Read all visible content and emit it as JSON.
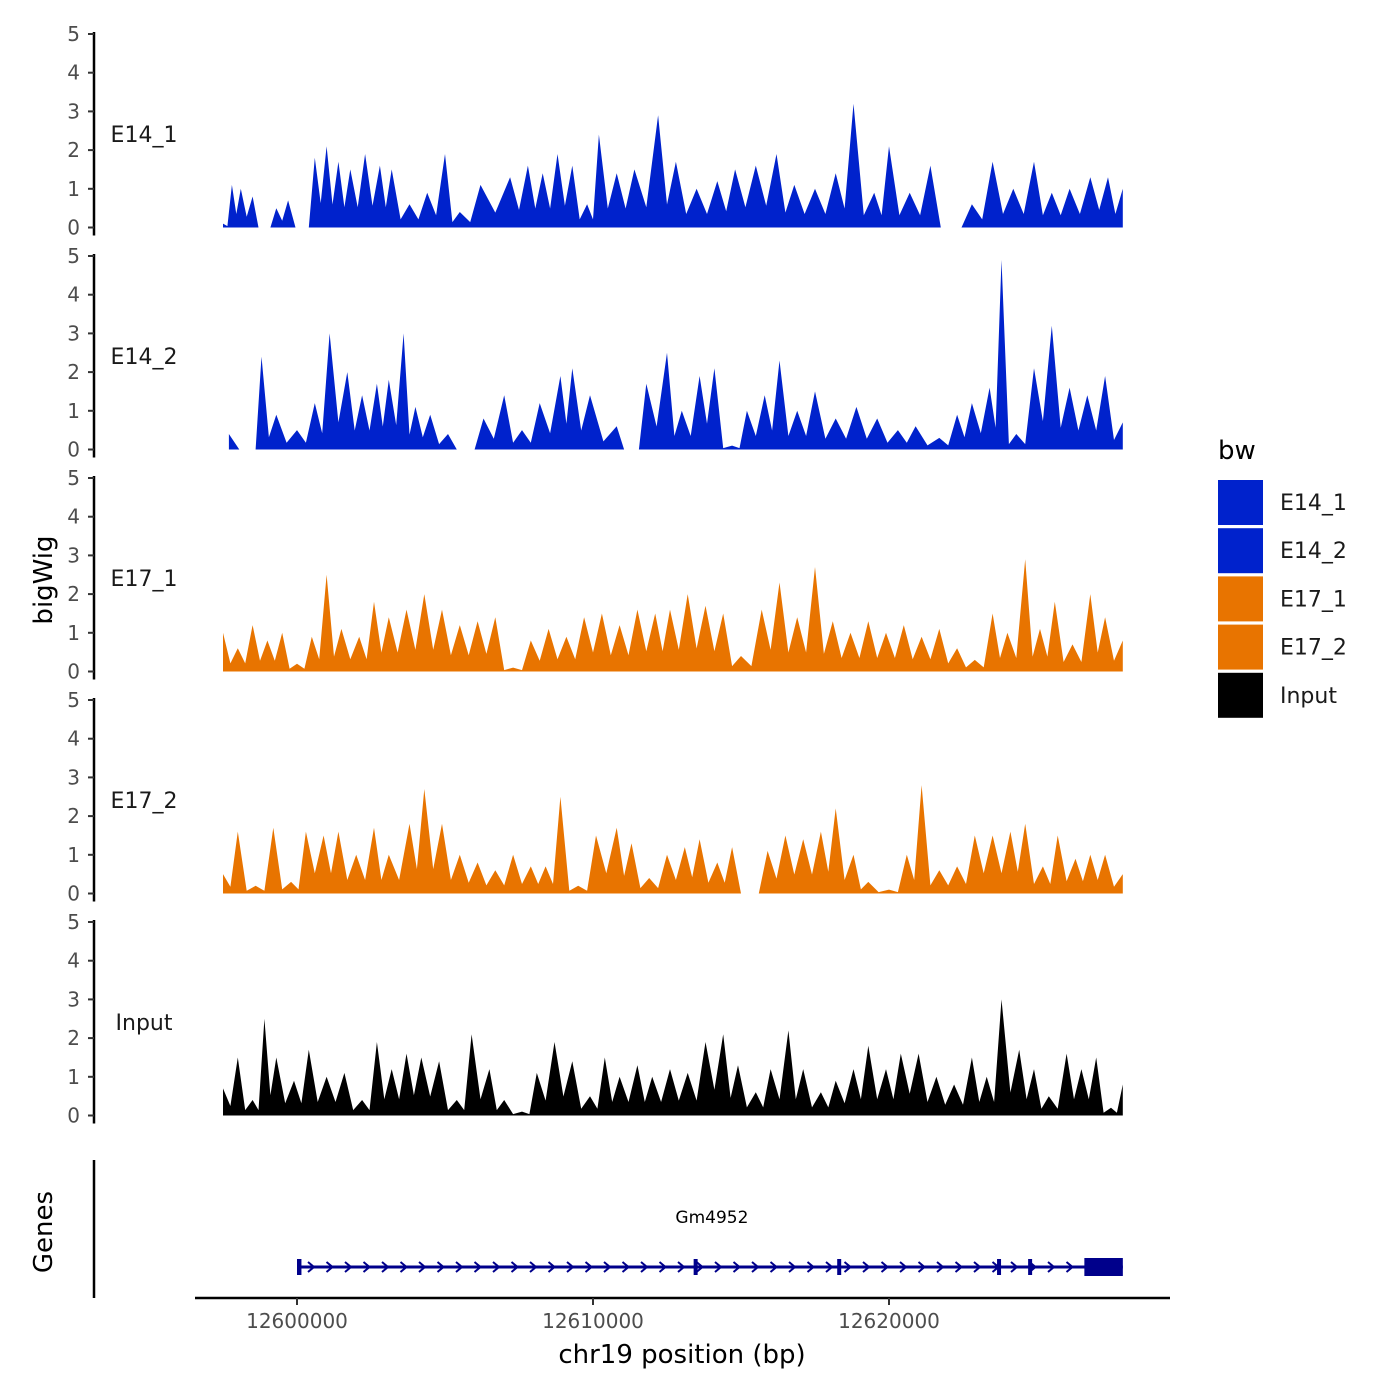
{
  "chart_data": {
    "type": "area",
    "region": {
      "chrom": "chr19",
      "start": 12597500,
      "end": 12627900
    },
    "ylabel": "bigWig",
    "genes_label": "Genes",
    "xlabel": "chr19 position (bp)",
    "x_ticks": [
      12600000,
      12610000,
      12620000
    ],
    "x_tick_labels": [
      "12600000",
      "12610000",
      "12620000"
    ],
    "y_ticks": [
      0,
      1,
      2,
      3,
      4,
      5
    ],
    "y_tick_labels": [
      "0",
      "1",
      "2",
      "3",
      "4",
      "5"
    ],
    "ylim": [
      0,
      5
    ],
    "legend": {
      "title": "bw",
      "entries": [
        {
          "label": "E14_1",
          "color": "#0022CC"
        },
        {
          "label": "E14_2",
          "color": "#0022CC"
        },
        {
          "label": "E17_1",
          "color": "#E87400"
        },
        {
          "label": "E17_2",
          "color": "#E87400"
        },
        {
          "label": "Input",
          "color": "#000000"
        }
      ]
    },
    "series": [
      {
        "name": "E14_1",
        "color": "#0022CC",
        "peaks": [
          [
            12597500,
            0.1
          ],
          [
            12597800,
            1.1
          ],
          [
            12598100,
            1.0
          ],
          [
            12598500,
            0.8
          ],
          [
            12598900,
            0.0
          ],
          [
            12599300,
            0.5
          ],
          [
            12599700,
            0.7
          ],
          [
            12600200,
            0.0
          ],
          [
            12600600,
            1.8
          ],
          [
            12601000,
            2.1
          ],
          [
            12601400,
            1.7
          ],
          [
            12601800,
            1.5
          ],
          [
            12602300,
            1.9
          ],
          [
            12602800,
            1.6
          ],
          [
            12603200,
            1.5
          ],
          [
            12603800,
            0.6
          ],
          [
            12604400,
            0.9
          ],
          [
            12605000,
            1.9
          ],
          [
            12605500,
            0.4
          ],
          [
            12606200,
            1.1
          ],
          [
            12607200,
            1.3
          ],
          [
            12607800,
            1.6
          ],
          [
            12608300,
            1.4
          ],
          [
            12608800,
            1.9
          ],
          [
            12609300,
            1.6
          ],
          [
            12609800,
            0.6
          ],
          [
            12610200,
            2.4
          ],
          [
            12610800,
            1.4
          ],
          [
            12611400,
            1.5
          ],
          [
            12612200,
            2.9
          ],
          [
            12612800,
            1.7
          ],
          [
            12613500,
            1.0
          ],
          [
            12614200,
            1.2
          ],
          [
            12614800,
            1.5
          ],
          [
            12615500,
            1.6
          ],
          [
            12616200,
            1.9
          ],
          [
            12616800,
            1.1
          ],
          [
            12617500,
            1.0
          ],
          [
            12618200,
            1.4
          ],
          [
            12618800,
            3.2
          ],
          [
            12619500,
            0.9
          ],
          [
            12620000,
            2.1
          ],
          [
            12620700,
            0.9
          ],
          [
            12621400,
            1.6
          ],
          [
            12622100,
            0.0
          ],
          [
            12622800,
            0.6
          ],
          [
            12623500,
            1.7
          ],
          [
            12624200,
            1.0
          ],
          [
            12624900,
            1.7
          ],
          [
            12625500,
            0.9
          ],
          [
            12626100,
            1.0
          ],
          [
            12626800,
            1.3
          ],
          [
            12627400,
            1.3
          ],
          [
            12627900,
            1.0
          ]
        ]
      },
      {
        "name": "E14_2",
        "color": "#0022CC",
        "peaks": [
          [
            12597700,
            0.4
          ],
          [
            12598400,
            0.0
          ],
          [
            12598800,
            2.4
          ],
          [
            12599300,
            0.9
          ],
          [
            12600000,
            0.5
          ],
          [
            12600600,
            1.2
          ],
          [
            12601100,
            3.0
          ],
          [
            12601700,
            2.0
          ],
          [
            12602200,
            1.4
          ],
          [
            12602700,
            1.7
          ],
          [
            12603100,
            1.8
          ],
          [
            12603600,
            3.0
          ],
          [
            12604000,
            1.1
          ],
          [
            12604500,
            0.9
          ],
          [
            12605100,
            0.4
          ],
          [
            12605700,
            0.0
          ],
          [
            12606300,
            0.8
          ],
          [
            12607000,
            1.4
          ],
          [
            12607600,
            0.5
          ],
          [
            12608200,
            1.2
          ],
          [
            12608900,
            1.9
          ],
          [
            12609300,
            2.1
          ],
          [
            12609900,
            1.4
          ],
          [
            12610800,
            0.6
          ],
          [
            12611300,
            0.0
          ],
          [
            12611800,
            1.7
          ],
          [
            12612500,
            2.5
          ],
          [
            12613000,
            1.0
          ],
          [
            12613600,
            1.9
          ],
          [
            12614100,
            2.1
          ],
          [
            12614700,
            0.1
          ],
          [
            12615200,
            1.0
          ],
          [
            12615800,
            1.4
          ],
          [
            12616300,
            2.3
          ],
          [
            12616900,
            1.0
          ],
          [
            12617500,
            1.5
          ],
          [
            12618200,
            0.8
          ],
          [
            12618900,
            1.1
          ],
          [
            12619600,
            0.8
          ],
          [
            12620300,
            0.5
          ],
          [
            12620900,
            0.6
          ],
          [
            12621700,
            0.3
          ],
          [
            12622300,
            0.9
          ],
          [
            12622800,
            1.2
          ],
          [
            12623400,
            1.6
          ],
          [
            12623800,
            4.9
          ],
          [
            12624300,
            0.4
          ],
          [
            12624900,
            2.1
          ],
          [
            12625500,
            3.2
          ],
          [
            12626100,
            1.6
          ],
          [
            12626700,
            1.4
          ],
          [
            12627300,
            1.9
          ],
          [
            12627900,
            0.7
          ]
        ]
      },
      {
        "name": "E17_1",
        "color": "#E87400",
        "peaks": [
          [
            12597500,
            1.0
          ],
          [
            12598000,
            0.6
          ],
          [
            12598500,
            1.2
          ],
          [
            12599000,
            0.8
          ],
          [
            12599500,
            1.0
          ],
          [
            12600000,
            0.2
          ],
          [
            12600500,
            0.9
          ],
          [
            12601000,
            2.5
          ],
          [
            12601500,
            1.1
          ],
          [
            12602100,
            0.9
          ],
          [
            12602600,
            1.8
          ],
          [
            12603100,
            1.4
          ],
          [
            12603700,
            1.6
          ],
          [
            12604300,
            2.0
          ],
          [
            12604900,
            1.6
          ],
          [
            12605500,
            1.2
          ],
          [
            12606100,
            1.3
          ],
          [
            12606700,
            1.4
          ],
          [
            12607300,
            0.1
          ],
          [
            12607900,
            0.8
          ],
          [
            12608500,
            1.1
          ],
          [
            12609100,
            0.9
          ],
          [
            12609700,
            1.4
          ],
          [
            12610300,
            1.5
          ],
          [
            12610900,
            1.2
          ],
          [
            12611500,
            1.6
          ],
          [
            12612100,
            1.5
          ],
          [
            12612600,
            1.6
          ],
          [
            12613200,
            2.0
          ],
          [
            12613800,
            1.7
          ],
          [
            12614400,
            1.5
          ],
          [
            12615000,
            0.4
          ],
          [
            12615700,
            1.6
          ],
          [
            12616300,
            2.3
          ],
          [
            12616900,
            1.4
          ],
          [
            12617500,
            2.7
          ],
          [
            12618100,
            1.3
          ],
          [
            12618700,
            1.0
          ],
          [
            12619300,
            1.3
          ],
          [
            12619900,
            1.0
          ],
          [
            12620500,
            1.2
          ],
          [
            12621100,
            0.9
          ],
          [
            12621700,
            1.1
          ],
          [
            12622300,
            0.6
          ],
          [
            12622900,
            0.3
          ],
          [
            12623500,
            1.5
          ],
          [
            12624000,
            1.0
          ],
          [
            12624600,
            2.9
          ],
          [
            12625100,
            1.1
          ],
          [
            12625600,
            1.8
          ],
          [
            12626200,
            0.7
          ],
          [
            12626800,
            2.0
          ],
          [
            12627300,
            1.4
          ],
          [
            12627900,
            0.8
          ]
        ]
      },
      {
        "name": "E17_2",
        "color": "#E87400",
        "peaks": [
          [
            12597500,
            0.5
          ],
          [
            12598000,
            1.6
          ],
          [
            12598600,
            0.2
          ],
          [
            12599200,
            1.7
          ],
          [
            12599800,
            0.3
          ],
          [
            12600300,
            1.6
          ],
          [
            12600900,
            1.5
          ],
          [
            12601400,
            1.6
          ],
          [
            12602000,
            1.0
          ],
          [
            12602600,
            1.7
          ],
          [
            12603100,
            1.0
          ],
          [
            12603800,
            1.8
          ],
          [
            12604300,
            2.7
          ],
          [
            12604900,
            1.8
          ],
          [
            12605500,
            1.0
          ],
          [
            12606100,
            0.8
          ],
          [
            12606700,
            0.6
          ],
          [
            12607300,
            1.0
          ],
          [
            12607900,
            0.7
          ],
          [
            12608400,
            0.7
          ],
          [
            12608900,
            2.5
          ],
          [
            12609500,
            0.2
          ],
          [
            12610100,
            1.5
          ],
          [
            12610800,
            1.7
          ],
          [
            12611300,
            1.3
          ],
          [
            12611900,
            0.4
          ],
          [
            12612500,
            1.0
          ],
          [
            12613100,
            1.2
          ],
          [
            12613600,
            1.4
          ],
          [
            12614200,
            0.8
          ],
          [
            12614700,
            1.2
          ],
          [
            12615300,
            0.0
          ],
          [
            12615900,
            1.1
          ],
          [
            12616500,
            1.5
          ],
          [
            12617100,
            1.4
          ],
          [
            12617700,
            1.6
          ],
          [
            12618200,
            2.2
          ],
          [
            12618800,
            1.0
          ],
          [
            12619300,
            0.3
          ],
          [
            12620000,
            0.1
          ],
          [
            12620600,
            1.0
          ],
          [
            12621100,
            2.8
          ],
          [
            12621700,
            0.6
          ],
          [
            12622300,
            0.7
          ],
          [
            12622900,
            1.5
          ],
          [
            12623500,
            1.5
          ],
          [
            12624100,
            1.6
          ],
          [
            12624600,
            1.8
          ],
          [
            12625200,
            0.7
          ],
          [
            12625700,
            1.5
          ],
          [
            12626300,
            0.9
          ],
          [
            12626800,
            1.0
          ],
          [
            12627300,
            1.0
          ],
          [
            12627900,
            0.5
          ]
        ]
      },
      {
        "name": "Input",
        "color": "#000000",
        "peaks": [
          [
            12597500,
            0.7
          ],
          [
            12598000,
            1.5
          ],
          [
            12598500,
            0.4
          ],
          [
            12598900,
            2.5
          ],
          [
            12599300,
            1.5
          ],
          [
            12599900,
            0.9
          ],
          [
            12600400,
            1.7
          ],
          [
            12601000,
            1.0
          ],
          [
            12601600,
            1.1
          ],
          [
            12602200,
            0.4
          ],
          [
            12602700,
            1.9
          ],
          [
            12603200,
            1.2
          ],
          [
            12603700,
            1.6
          ],
          [
            12604200,
            1.5
          ],
          [
            12604800,
            1.4
          ],
          [
            12605400,
            0.4
          ],
          [
            12605900,
            2.1
          ],
          [
            12606500,
            1.2
          ],
          [
            12607000,
            0.4
          ],
          [
            12607600,
            0.1
          ],
          [
            12608100,
            1.1
          ],
          [
            12608700,
            1.9
          ],
          [
            12609300,
            1.4
          ],
          [
            12609900,
            0.5
          ],
          [
            12610400,
            1.5
          ],
          [
            12610900,
            1.0
          ],
          [
            12611500,
            1.3
          ],
          [
            12612000,
            1.0
          ],
          [
            12612600,
            1.2
          ],
          [
            12613200,
            1.1
          ],
          [
            12613800,
            1.9
          ],
          [
            12614400,
            2.1
          ],
          [
            12614900,
            1.3
          ],
          [
            12615500,
            0.6
          ],
          [
            12616000,
            1.2
          ],
          [
            12616600,
            2.2
          ],
          [
            12617100,
            1.2
          ],
          [
            12617700,
            0.6
          ],
          [
            12618200,
            0.9
          ],
          [
            12618800,
            1.2
          ],
          [
            12619300,
            1.8
          ],
          [
            12619900,
            1.2
          ],
          [
            12620400,
            1.6
          ],
          [
            12621000,
            1.6
          ],
          [
            12621600,
            1.0
          ],
          [
            12622200,
            0.8
          ],
          [
            12622800,
            1.5
          ],
          [
            12623300,
            1.0
          ],
          [
            12623800,
            3.0
          ],
          [
            12624400,
            1.7
          ],
          [
            12624900,
            1.2
          ],
          [
            12625400,
            0.5
          ],
          [
            12626000,
            1.6
          ],
          [
            12626500,
            1.2
          ],
          [
            12627000,
            1.5
          ],
          [
            12627500,
            0.2
          ],
          [
            12627900,
            0.8
          ]
        ]
      }
    ],
    "gene": {
      "name": "Gm4952",
      "start": 12600000,
      "end": 12627900,
      "strand": "+",
      "color": "#00008B",
      "exons": [
        [
          12600000,
          12600150
        ],
        [
          12613400,
          12613470
        ],
        [
          12618250,
          12618320
        ],
        [
          12623650,
          12623720
        ],
        [
          12624700,
          12624800
        ],
        [
          12626600,
          12627900
        ]
      ]
    }
  }
}
